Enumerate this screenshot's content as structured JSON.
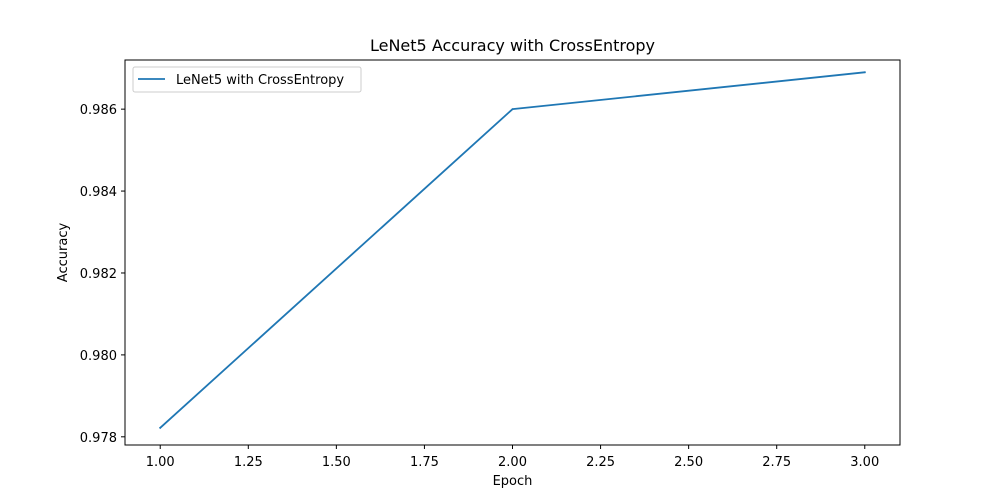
{
  "chart_data": {
    "type": "line",
    "title": "LeNet5 Accuracy with CrossEntropy",
    "xlabel": "Epoch",
    "ylabel": "Accuracy",
    "xlim": [
      0.9,
      3.1
    ],
    "ylim": [
      0.9778,
      0.9872
    ],
    "x_ticks": [
      1.0,
      1.25,
      1.5,
      1.75,
      2.0,
      2.25,
      2.5,
      2.75,
      3.0
    ],
    "x_tick_labels": [
      "1.00",
      "1.25",
      "1.50",
      "1.75",
      "2.00",
      "2.25",
      "2.50",
      "2.75",
      "3.00"
    ],
    "y_ticks": [
      0.978,
      0.98,
      0.982,
      0.984,
      0.986
    ],
    "y_tick_labels": [
      "0.978",
      "0.980",
      "0.982",
      "0.984",
      "0.986"
    ],
    "grid": false,
    "legend_position": "top-left",
    "series": [
      {
        "name": "LeNet5 with CrossEntropy",
        "color": "#1f77b4",
        "x": [
          1,
          2,
          3
        ],
        "y": [
          0.97822,
          0.986,
          0.9869
        ]
      }
    ]
  }
}
